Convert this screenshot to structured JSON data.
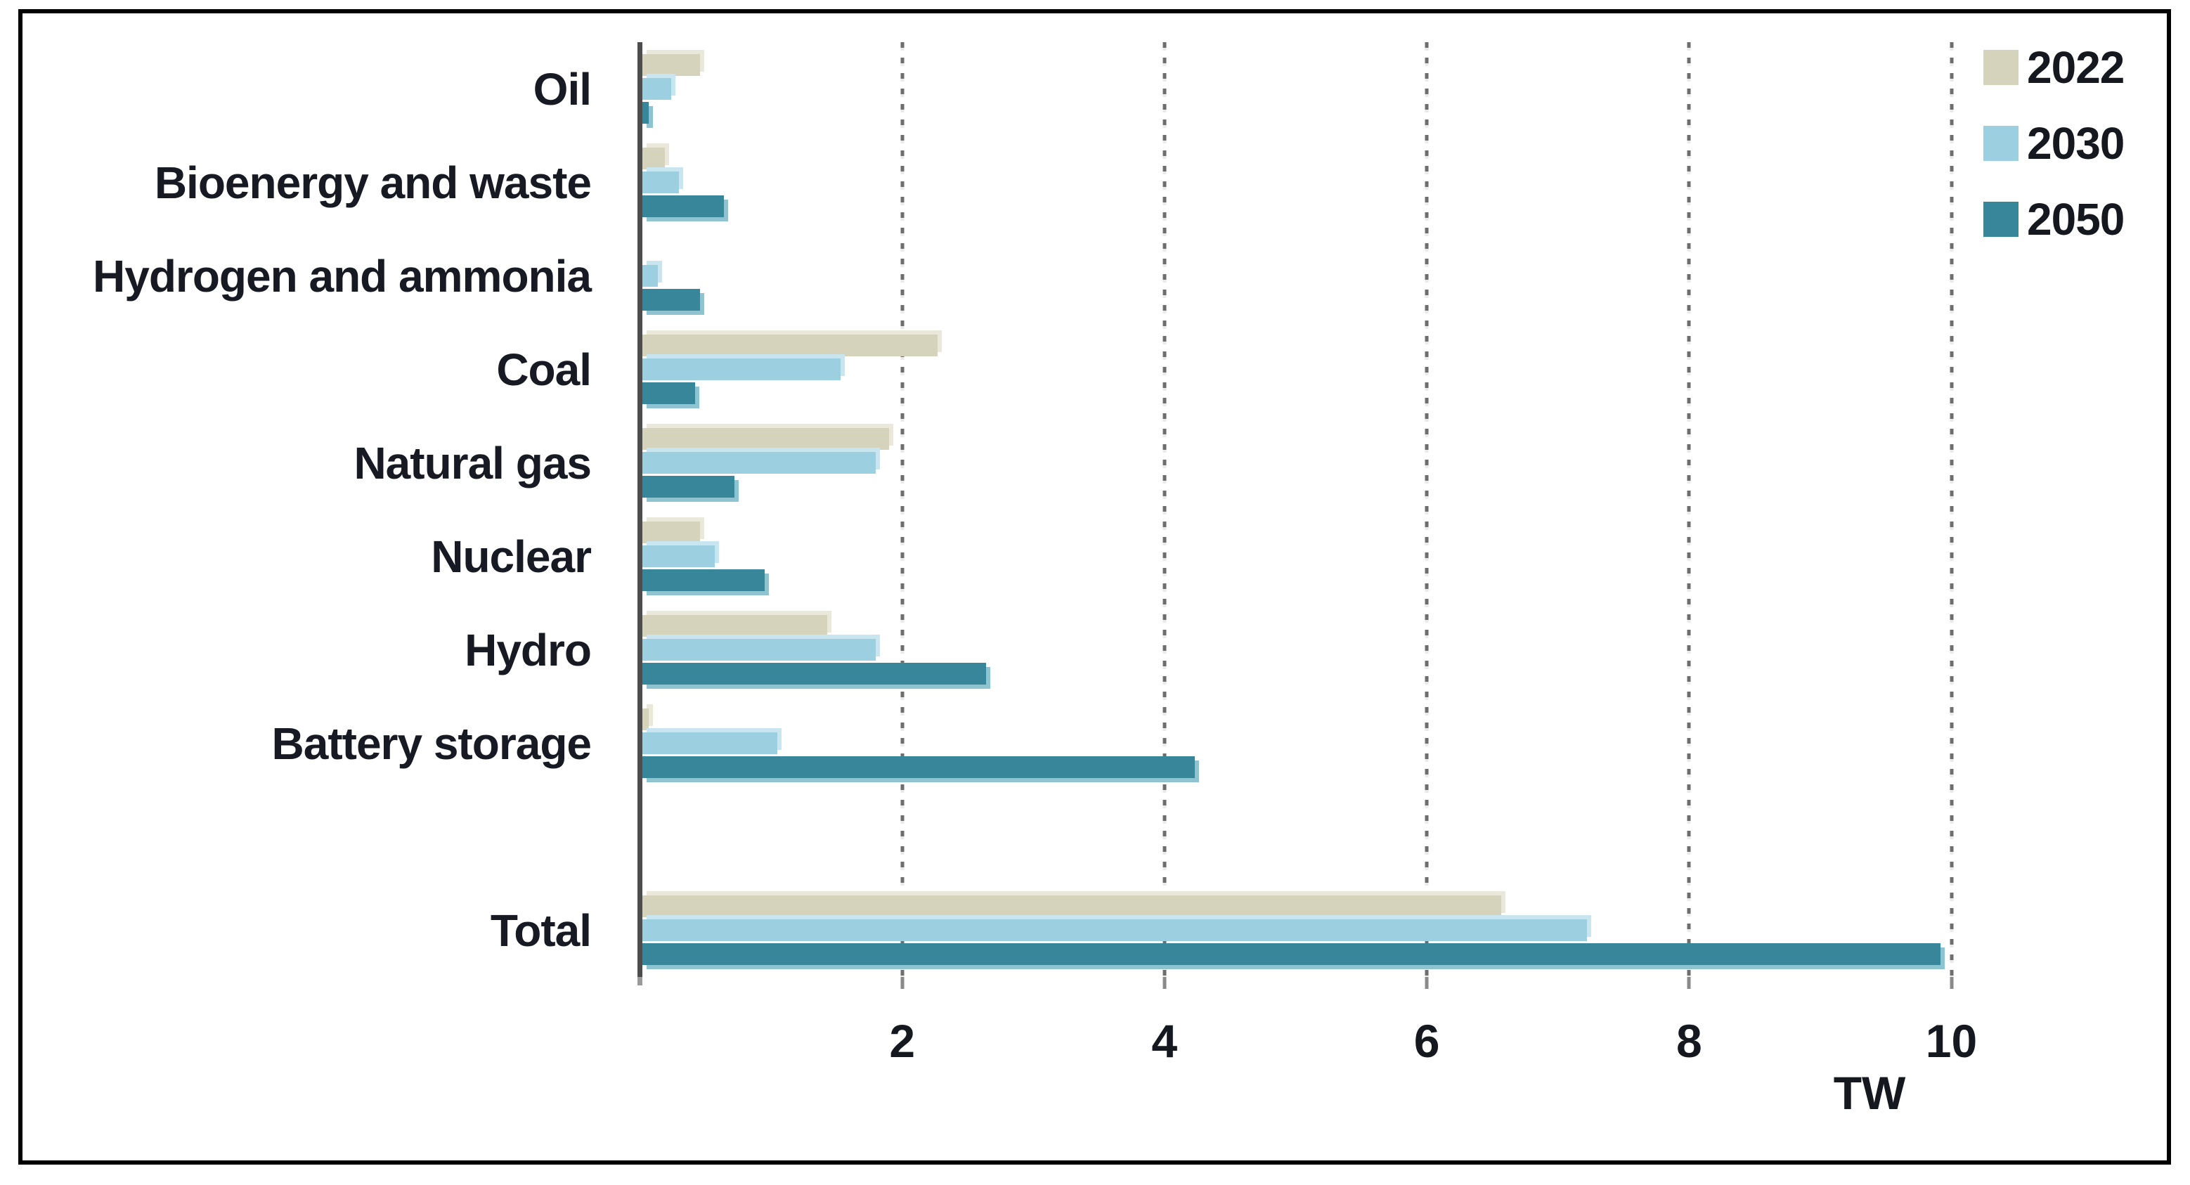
{
  "chart_data": {
    "type": "bar",
    "orientation": "horizontal",
    "title": "",
    "xlabel": "TW",
    "ylabel": "",
    "categories": [
      "Oil",
      "Bioenergy and waste",
      "Hydrogen and ammonia",
      "Coal",
      "Natural gas",
      "Nuclear",
      "Hydro",
      "Battery storage",
      "Total"
    ],
    "series": [
      {
        "name": "2022",
        "values": [
          0.44,
          0.17,
          0.0,
          2.25,
          1.88,
          0.44,
          1.41,
          0.05,
          6.55
        ]
      },
      {
        "name": "2030",
        "values": [
          0.22,
          0.28,
          0.12,
          1.51,
          1.78,
          0.55,
          1.78,
          1.03,
          7.2
        ]
      },
      {
        "name": "2050",
        "values": [
          0.05,
          0.62,
          0.44,
          0.4,
          0.7,
          0.93,
          2.62,
          4.21,
          9.9
        ]
      }
    ],
    "x_axis": {
      "ticks": [
        2,
        4,
        6,
        8,
        10
      ],
      "max": 10,
      "label": "TW",
      "gridlines": "dotted-vertical"
    },
    "legend": {
      "position": "top-right",
      "entries": [
        "2022",
        "2030",
        "2050"
      ]
    },
    "layout_hints": {
      "gap_row_before_total": true,
      "axis_line": "left-vertical-gray"
    }
  },
  "colors": {
    "series_2022": "#D6D3BC",
    "series_2022_light": "#EAE8DB",
    "series_2030": "#9CCFDF",
    "series_2030_light": "#C9E6F0",
    "series_2050": "#37869A",
    "series_2050_light": "#8FC3D0",
    "axis": "#4d4d4d",
    "gridline": "#6e6e6e",
    "text": "#15181e",
    "frame": "#000000",
    "background": "#ffffff"
  }
}
